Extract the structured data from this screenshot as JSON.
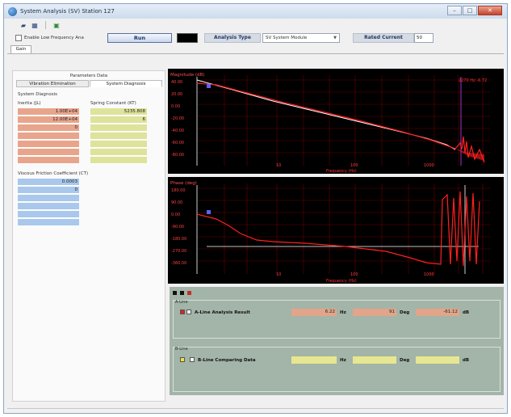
{
  "window": {
    "title": "System Analysis (SV) Station 127",
    "controls": {
      "minimize": "–",
      "maximize": "□",
      "close": "✕"
    }
  },
  "toolbar": {
    "icons": [
      "open-icon",
      "save-icon",
      "export-icon"
    ]
  },
  "options": {
    "low_freq_label": "Enable Low Frequency Ana",
    "run_label": "Run",
    "analysis_type_label": "Analysis Type",
    "analysis_type_value": "SV System Module",
    "rated_current_label": "Rated Current",
    "rated_current_value": "50"
  },
  "tabs": {
    "main": "Gain"
  },
  "params": {
    "title": "Parameters Data",
    "subtabs": [
      "Vibration Elimination",
      "System Diagnosis"
    ],
    "section": "System Diagnosis",
    "inertia_label": "Inertia (JL)",
    "spring_label": "Spring Constant (KT)",
    "inertia_values": [
      "1.00E+04",
      "12.00E+04",
      "0",
      "",
      "",
      "",
      ""
    ],
    "spring_values": [
      "5235.808",
      "6",
      "",
      "",
      "",
      "",
      ""
    ],
    "viscous_label": "Viscous Friction Coefficient (CT)",
    "viscous_values": [
      "0.0003",
      "0",
      "",
      "",
      "",
      ""
    ]
  },
  "graph_top": {
    "title": "Magnitude (dB)",
    "xlabel": "Frequency (Hz)",
    "yticks": [
      "40.00",
      "20.00",
      "0.00",
      "-20.00",
      "-40.00",
      "-60.00",
      "-80.00"
    ],
    "xticks": [
      "10",
      "100",
      "1000"
    ],
    "readout": "2270 Hz -6.72"
  },
  "graph_bottom": {
    "title": "Phase (deg)",
    "xlabel": "Frequency (Hz)",
    "yticks": [
      "180.00",
      "90.00",
      "0.00",
      "-90.00",
      "-180.00",
      "-270.00",
      "-360.00"
    ],
    "xticks": [
      "10",
      "100",
      "1000"
    ]
  },
  "cursor": {
    "a_title": "A-Line",
    "a_label": "A-Line Analysis Result",
    "a_hz": "6.22",
    "a_deg": "91",
    "a_db": "-61.12",
    "b_title": "B-Line",
    "b_label": "B-Line Comparing Data",
    "b_hz": "",
    "b_deg": "",
    "b_db": "",
    "unit_hz": "Hz",
    "unit_deg": "Deg",
    "unit_db": "dB"
  },
  "colors": {
    "accent": "#ff3030",
    "grid": "#7a0000",
    "cursor_a": "#e02020",
    "cursor_b": "#f0e040"
  }
}
